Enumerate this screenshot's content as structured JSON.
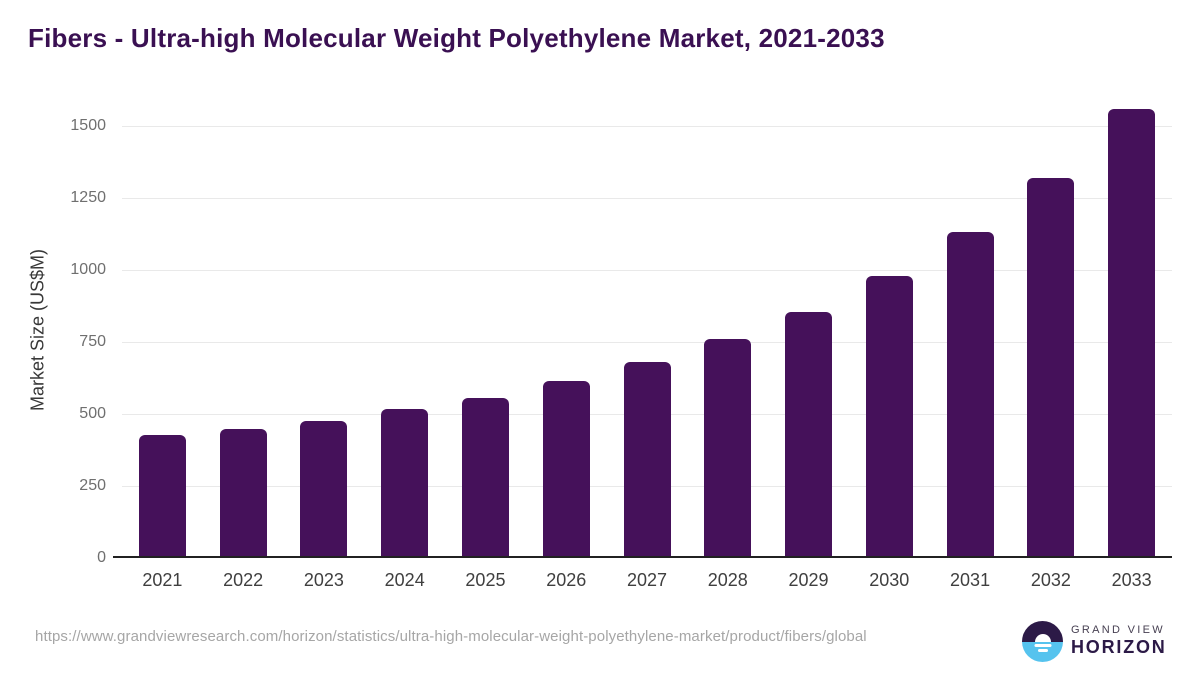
{
  "source_url": "https://www.grandviewresearch.com/horizon/statistics/ultra-high-molecular-weight-polyethylene-market/product/fibers/global",
  "logo": {
    "line1": "GRAND VIEW",
    "line2": "HORIZON",
    "icon": "sunrise-horizon-circle-icon"
  },
  "colors": {
    "bar": "#45115a",
    "title": "#3a1052",
    "grid": "#e9e9e9",
    "axis": "#212121",
    "y_tick_text": "#6f6f6f",
    "x_tick_text": "#3f3f3f",
    "url_text": "#a6a6a6",
    "logo_dark": "#2c1a47",
    "logo_blue": "#56c3ee"
  },
  "chart_data": {
    "type": "bar",
    "title": "Fibers - Ultra-high Molecular Weight Polyethylene Market, 2021-2033",
    "categories": [
      "2021",
      "2022",
      "2023",
      "2024",
      "2025",
      "2026",
      "2027",
      "2028",
      "2029",
      "2030",
      "2031",
      "2032",
      "2033"
    ],
    "values": [
      421,
      442,
      470,
      509,
      549,
      607,
      672,
      753,
      849,
      971,
      1124,
      1312,
      1553
    ],
    "xlabel": "",
    "ylabel": "Market Size (US$M)",
    "yticks": [
      0,
      250,
      500,
      750,
      1000,
      1250,
      1500
    ],
    "ylim": [
      0,
      1590
    ],
    "grid": "horizontal",
    "legend": "none",
    "bar_color": "#45115a"
  }
}
